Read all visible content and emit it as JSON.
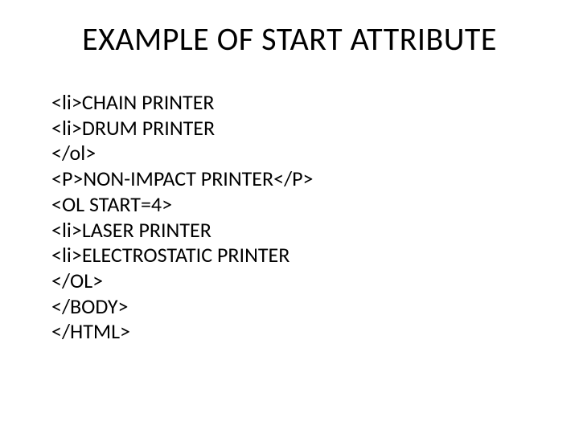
{
  "slide": {
    "title": "EXAMPLE OF START ATTRIBUTE",
    "title_fontsize": 40,
    "title_color": "#000000",
    "body_fontsize": 26,
    "body_color": "#000000",
    "background_color": "#ffffff",
    "lines": [
      "<li>CHAIN PRINTER",
      "<li>DRUM PRINTER",
      "</ol>",
      "<P>NON-IMPACT PRINTER</P>",
      "<OL START=4>",
      "<li>LASER PRINTER",
      "<li>ELECTROSTATIC PRINTER",
      "</OL>",
      "</BODY>",
      "</HTML>"
    ]
  }
}
